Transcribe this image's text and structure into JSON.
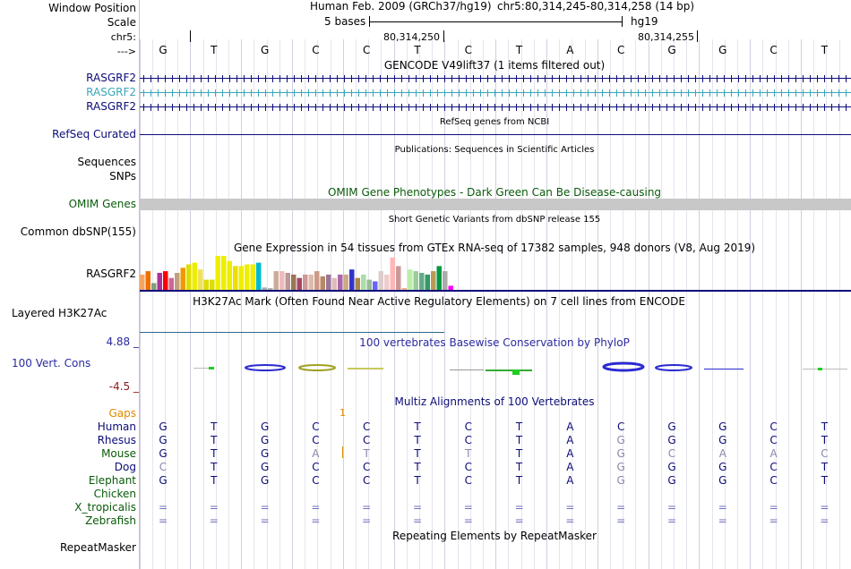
{
  "header": {
    "window_position_label": "Window Position",
    "assembly": "Human Feb. 2009 (GRCh37/hg19)",
    "position": "chr5:80,314,245-80,314,258 (14 bp)",
    "scale_label": "Scale",
    "scale_value": "5 bases",
    "scale_db": "hg19",
    "chrom_label": "chr5:",
    "coord_1": "80,314,250",
    "coord_2": "80,314,255",
    "strand_label": "--->"
  },
  "sequence": [
    "G",
    "T",
    "G",
    "C",
    "C",
    "T",
    "C",
    "T",
    "A",
    "C",
    "G",
    "G",
    "C",
    "T"
  ],
  "tracks": {
    "gencode": {
      "title": "GENCODE V49lift37 (1 items filtered out)",
      "items": [
        "RASGRF2",
        "RASGRF2",
        "RASGRF2"
      ],
      "colors": [
        "#0c0c78",
        "#3aa6b8",
        "#0c0c78"
      ]
    },
    "refseq": {
      "title": "RefSeq genes from NCBI",
      "label": "RefSeq Curated"
    },
    "publications": {
      "title": "Publications: Sequences in Scientific Articles",
      "label_1": "Sequences",
      "label_2": "SNPs"
    },
    "omim": {
      "title": "OMIM Gene Phenotypes - Dark Green Can Be Disease-causing",
      "label": "OMIM Genes"
    },
    "snp": {
      "title": "Short Genetic Variants from dbSNP release 155",
      "label": "Common dbSNP(155)"
    },
    "gtex": {
      "title": "Gene Expression in 54 tissues from GTEx RNA-seq of 17382 samples, 948 donors (V8, Aug 2019)",
      "label": "RASGRF2",
      "bars": [
        0.45,
        0.55,
        0.2,
        0.5,
        0.55,
        0.35,
        0.5,
        0.65,
        0.75,
        0.8,
        0.6,
        0.3,
        0.3,
        1.0,
        1.0,
        0.85,
        0.7,
        0.7,
        0.75,
        0.75,
        0.8,
        0.07,
        0.05,
        0.55,
        0.55,
        0.5,
        0.45,
        0.35,
        0.45,
        0.45,
        0.55,
        0.4,
        0.45,
        0.35,
        0.45,
        0.45,
        0.6,
        0.35,
        0.45,
        0.3,
        0.25,
        0.55,
        0.45,
        0.95,
        0.7,
        0.05,
        0.6,
        0.55,
        0.5,
        0.45,
        0.55,
        0.7,
        0.55,
        0.12
      ],
      "colors": [
        "#f4a460",
        "#ee7000",
        "#7f9f7f",
        "#aa3399",
        "#ff0000",
        "#cc6699",
        "#c0a080",
        "#ee9900",
        "#dddd00",
        "#eeee00",
        "#f0e060",
        "#dddd00",
        "#dddd00",
        "#eeee00",
        "#eeee00",
        "#eeee00",
        "#eedd00",
        "#eeee00",
        "#eeee00",
        "#eeee00",
        "#00bbcc",
        "#aaaaaa",
        "#aaaaaa",
        "#ccaa99",
        "#eebbbb",
        "#bb9999",
        "#997755",
        "#aa4466",
        "#cc9999",
        "#ddbbaa",
        "#cc9988",
        "#bb8866",
        "#997799",
        "#ddbbbb",
        "#aa66aa",
        "#ccaa88",
        "#3333cc",
        "#aa8844",
        "#aaddaa",
        "#99bb99",
        "#6666ff",
        "#ddcccc",
        "#eecccc",
        "#ffb6b6",
        "#cc9999",
        "#eeaa88",
        "#bbeeaa",
        "#99cc99",
        "#66aa88",
        "#339966",
        "#bb9955",
        "#009944",
        "#aaaaaa",
        "#ff00ff"
      ]
    },
    "h3k27ac": {
      "title": "H3K27Ac Mark (Often Found Near Active Regulatory Elements) on 7 cell lines from ENCODE",
      "label": "Layered H3K27Ac"
    },
    "phylop": {
      "title": "100 vertebrates Basewise Conservation by PhyloP",
      "label": "100 Vert. Cons",
      "max": "4.88 _",
      "min": "-4.5 _"
    },
    "multiz": {
      "title": "Multiz Alignments of 100 Vertebrates",
      "gaps_label": "Gaps",
      "species": [
        {
          "name": "Human",
          "seq": [
            "G",
            "T",
            "G",
            "C",
            "C",
            "T",
            "C",
            "T",
            "A",
            "C",
            "G",
            "G",
            "C",
            "T"
          ]
        },
        {
          "name": "Rhesus",
          "seq": [
            "G",
            "T",
            "G",
            "C",
            "C",
            "T",
            "C",
            "T",
            "A",
            "G",
            "G",
            "G",
            "C",
            "T"
          ]
        },
        {
          "name": "Mouse",
          "seq": [
            "G",
            "T",
            "G",
            "A",
            "T",
            "T",
            "T",
            "T",
            "A",
            "G",
            "C",
            "A",
            "A",
            "C"
          ]
        },
        {
          "name": "Dog",
          "seq": [
            "C",
            "T",
            "G",
            "C",
            "C",
            "T",
            "C",
            "T",
            "A",
            "G",
            "G",
            "G",
            "C",
            "T"
          ]
        },
        {
          "name": "Elephant",
          "seq": [
            "G",
            "T",
            "G",
            "C",
            "C",
            "T",
            "C",
            "T",
            "A",
            "G",
            "G",
            "G",
            "C",
            "T"
          ]
        },
        {
          "name": "Chicken",
          "seq": [
            "",
            "",
            "",
            "",
            "",
            "",
            "",
            "",
            "",
            "",
            "",
            "",
            "",
            ""
          ]
        },
        {
          "name": "X_tropicalis",
          "seq": [
            "=",
            "=",
            "=",
            "=",
            "=",
            "=",
            "=",
            "=",
            "=",
            "=",
            "=",
            "=",
            "=",
            "="
          ]
        },
        {
          "name": "Zebrafish",
          "seq": [
            "=",
            "=",
            "=",
            "=",
            "=",
            "=",
            "=",
            "=",
            "=",
            "=",
            "=",
            "=",
            "=",
            "="
          ]
        }
      ]
    },
    "repeatmasker": {
      "title": "Repeating Elements by RepeatMasker",
      "label": "RepeatMasker"
    }
  },
  "colors": {
    "navy": "#0c0c78",
    "teal": "#3aa6b8",
    "dark_green": "#0a5a0a",
    "omim_gray": "#c8c8c8",
    "phylop_blue": "#2a2aa0",
    "gaps_orange": "#e08a00",
    "min_red": "#8b1a1a"
  }
}
